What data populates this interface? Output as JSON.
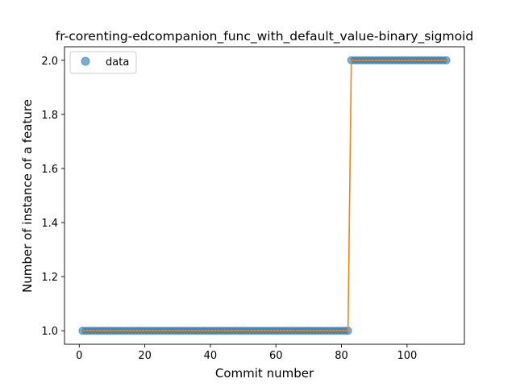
{
  "chart_data": {
    "type": "scatter",
    "title": "fr-corenting-edcompanion_func_with_default_value-binary_sigmoid",
    "xlabel": "Commit number",
    "ylabel": "Number of instance of a feature",
    "xlim": [
      -4.5,
      117.5
    ],
    "ylim": [
      0.95,
      2.05
    ],
    "xticks": [
      0,
      20,
      40,
      60,
      80,
      100
    ],
    "yticks": [
      1.0,
      1.2,
      1.4,
      1.6,
      1.8,
      2.0
    ],
    "xtick_labels": [
      "0",
      "20",
      "40",
      "60",
      "80",
      "100"
    ],
    "ytick_labels": [
      "1.0",
      "1.2",
      "1.4",
      "1.6",
      "1.8",
      "2.0"
    ],
    "legend": {
      "entries": [
        "data"
      ],
      "placement": "top-left"
    },
    "grid": false,
    "colors": {
      "data": "#1f77b4",
      "fit": "#ff7f0e"
    },
    "series": [
      {
        "name": "data",
        "kind": "points",
        "segments": [
          {
            "x_from": 1,
            "x_to": 82,
            "y": 1.0
          },
          {
            "x_from": 83,
            "x_to": 112,
            "y": 2.0
          }
        ]
      },
      {
        "kind": "line",
        "x": [
          1,
          82,
          83,
          112
        ],
        "y": [
          1.0,
          1.0,
          2.0,
          2.0
        ]
      }
    ]
  }
}
